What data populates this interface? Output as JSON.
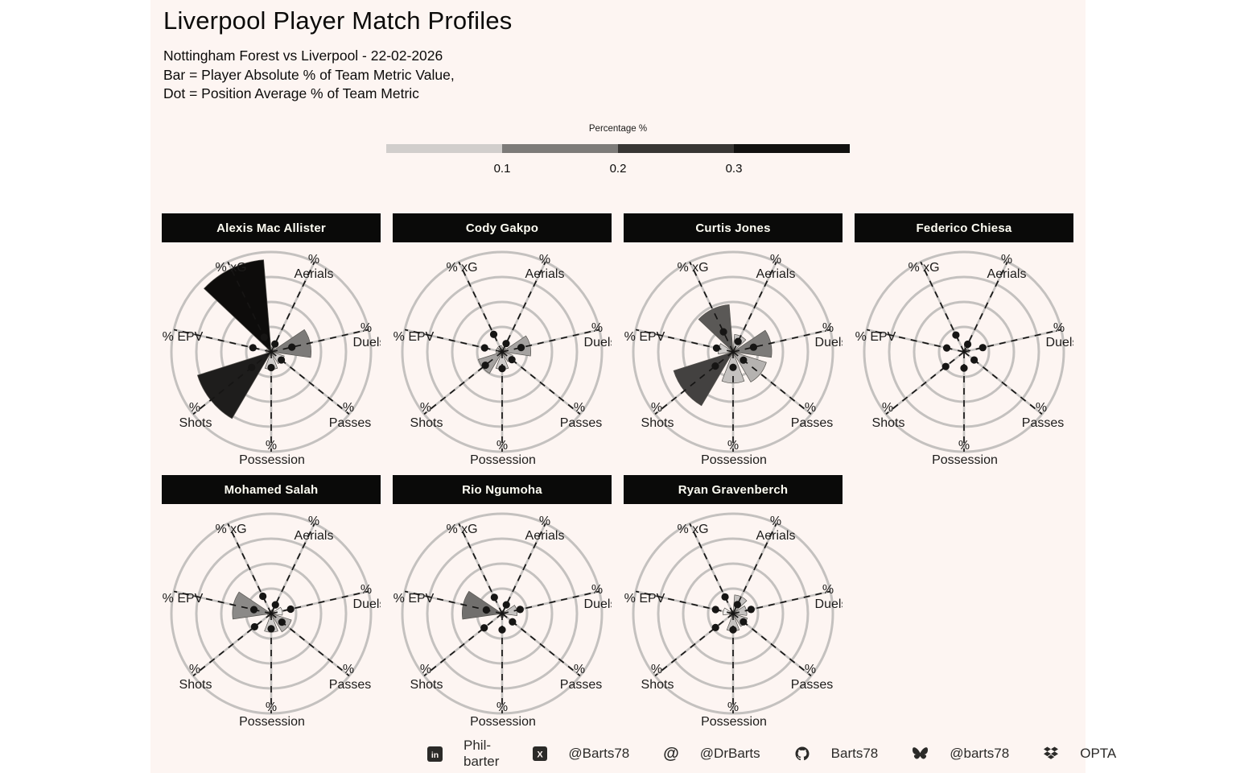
{
  "header": {
    "title": "Liverpool Player Match Profiles",
    "subtitle_lines": [
      "Nottingham Forest vs Liverpool - 22-02-2026",
      "Bar = Player Absolute % of Team Metric Value,",
      "Dot = Position Average % of Team Metric"
    ]
  },
  "colorbar": {
    "label": "Percentage %",
    "ticks": [
      "0.1",
      "0.2",
      "0.3"
    ],
    "segment_colors": [
      "#d1cecc",
      "#7d7b79",
      "#383634",
      "#121110"
    ]
  },
  "chart_data": {
    "type": "polar_bar_grid",
    "description": "Each panel: 7-spoke polar bar chart. Bar = player absolute % of team metric value, dot = position average % of team metric. Rings at 0.1/0.2/0.3/0.4.",
    "metrics": [
      "xG",
      "Aerials",
      "Duels",
      "Passes",
      "Possession",
      "Shots",
      "EPV"
    ],
    "metric_angles_deg": [
      115.714,
      64.286,
      12.857,
      321.429,
      270,
      218.571,
      167.143
    ],
    "ring_values": [
      0.1,
      0.2,
      0.3,
      0.4
    ],
    "outer_value": 0.4,
    "players": [
      {
        "name": "Alexis Mac Allister",
        "bars": [
          0.37,
          0.02,
          0.16,
          0.055,
          0.07,
          0.31,
          0.02
        ],
        "bar_colors": [
          "#0d0c0b",
          "#f4f1ef",
          "#7d7b79",
          "#d1cecc",
          "#cfccca",
          "#1e1d1c",
          "#f4f1ef"
        ],
        "dots": [
          0.065,
          0.035,
          0.085,
          0.052,
          0.063,
          0.1,
          0.075
        ]
      },
      {
        "name": "Cody Gakpo",
        "bars": [
          0.025,
          0.02,
          0.115,
          0.045,
          0.07,
          0.1,
          0.025
        ],
        "bar_colors": [
          "#f4f1ef",
          "#f4f1ef",
          "#a5a2a0",
          "#c4c1bf",
          "#cfccca",
          "#a5a2a0",
          "#f4f1ef"
        ],
        "dots": [
          0.078,
          0.037,
          0.078,
          0.05,
          0.067,
          0.086,
          0.072
        ]
      },
      {
        "name": "Curtis Jones",
        "bars": [
          0.19,
          0.07,
          0.155,
          0.14,
          0.125,
          0.25,
          0.06
        ],
        "bar_colors": [
          "#5a5856",
          "#c4c1bf",
          "#7d7b79",
          "#b5b2b0",
          "#c4c1bf",
          "#434140",
          "#cfccca"
        ],
        "dots": [
          0.089,
          0.046,
          0.084,
          0.053,
          0.062,
          0.091,
          0.068
        ]
      },
      {
        "name": "Federico Chiesa",
        "bars": [
          0.008,
          0.025,
          0.02,
          0,
          0,
          0,
          0
        ],
        "bar_colors": [
          "#f4f1ef",
          "#f4f1ef",
          "#f4f1ef",
          "#f4f1ef",
          "#f4f1ef",
          "#f4f1ef",
          "#f4f1ef"
        ],
        "dots": [
          0.075,
          0.034,
          0.077,
          0.052,
          0.065,
          0.094,
          0.071
        ]
      },
      {
        "name": "Mohamed Salah",
        "bars": [
          0.012,
          0.015,
          0.045,
          0.085,
          0.075,
          0.015,
          0.155
        ],
        "bar_colors": [
          "#f4f1ef",
          "#f4f1ef",
          "#eeebe9",
          "#b5b2b0",
          "#cfccca",
          "#f4f1ef",
          "#8b8987"
        ],
        "dots": [
          0.077,
          0.039,
          0.08,
          0.055,
          0.061,
          0.085,
          0.071
        ]
      },
      {
        "name": "Rio Ngumoha",
        "bars": [
          0.01,
          0.012,
          0.06,
          0.012,
          0.015,
          0.012,
          0.16
        ],
        "bar_colors": [
          "#f4f1ef",
          "#f4f1ef",
          "#c4c1bf",
          "#f4f1ef",
          "#f4f1ef",
          "#f4f1ef",
          "#716f6d"
        ],
        "dots": [
          0.072,
          0.039,
          0.074,
          0.053,
          0.065,
          0.092,
          0.065
        ]
      },
      {
        "name": "Ryan Gravenberch",
        "bars": [
          0.012,
          0.075,
          0.055,
          0.06,
          0.07,
          0.015,
          0.04
        ],
        "bar_colors": [
          "#f4f1ef",
          "#c4c1bf",
          "#c4c1bf",
          "#c4c1bf",
          "#c4c1bf",
          "#f4f1ef",
          "#f0edeb"
        ],
        "dots": [
          0.074,
          0.04,
          0.074,
          0.053,
          0.065,
          0.09,
          0.072
        ]
      }
    ]
  },
  "footer": {
    "items": [
      {
        "icon": "linkedin-icon",
        "label": "Phil-barter"
      },
      {
        "icon": "x-icon",
        "label": "@Barts78"
      },
      {
        "icon": "mastodon-icon",
        "label": "@DrBarts"
      },
      {
        "icon": "github-icon",
        "label": "Barts78"
      },
      {
        "icon": "bluesky-icon",
        "label": "@barts78"
      },
      {
        "icon": "dropbox-icon",
        "label": "OPTA"
      }
    ]
  }
}
